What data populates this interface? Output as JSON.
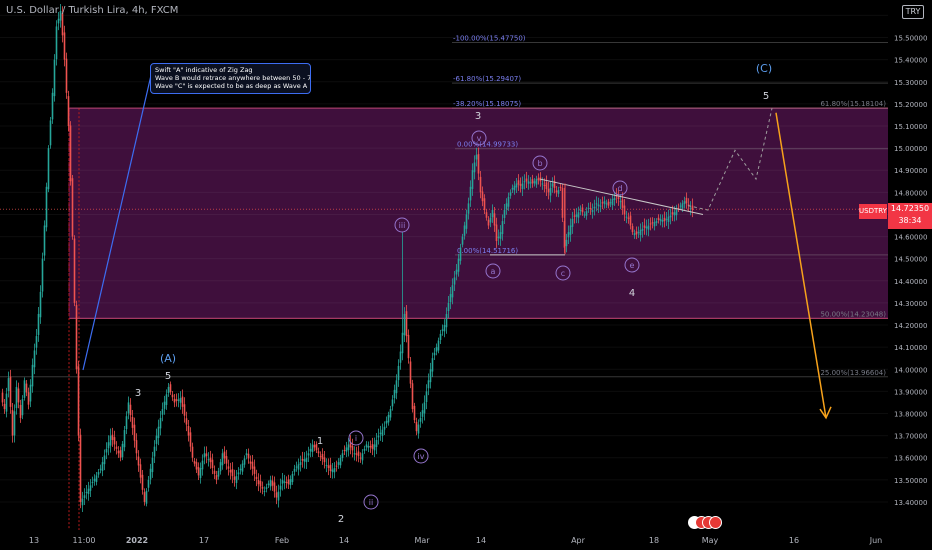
{
  "header": {
    "title": "U.S. Dollar / Turkish Lira, 4h, FXCM"
  },
  "currency_badge": "TRY",
  "note": {
    "lines": [
      "Swift \"A\" indicative of Zig Zag",
      "Wave B would retrace anywhere between 50 - 78%",
      "Wave \"C\" is expected to be as deep as Wave A"
    ]
  },
  "price_tag": {
    "symbol": "USDTRY",
    "price": "14.72350",
    "countdown": "38:34"
  },
  "colors": {
    "up": "#26a69a",
    "down": "#ef5350",
    "zone": "#4a1247",
    "zone_border": "#c2185b",
    "projection": "#f7a21b",
    "wave_label": "#9575cd",
    "fib_text": "#787b86",
    "fib_label": "#7b7ff0"
  },
  "chart_data": {
    "type": "candlestick",
    "symbol": "USDTRY",
    "timeframe": "4h",
    "ylim": [
      13.35,
      15.62
    ],
    "y_ticks": [
      "15.60000",
      "15.50000",
      "15.40000",
      "15.30000",
      "15.20000",
      "15.10000",
      "15.00000",
      "14.90000",
      "14.80000",
      "14.70000",
      "14.60000",
      "14.50000",
      "14.40000",
      "14.30000",
      "14.20000",
      "14.10000",
      "14.00000",
      "13.90000",
      "13.80000",
      "13.70000",
      "13.60000",
      "13.50000",
      "13.40000"
    ],
    "x_ticks": [
      "13",
      "11:00",
      "2022",
      "17",
      "Feb",
      "14",
      "Mar",
      "14",
      "Apr",
      "18",
      "May",
      "16",
      "Jun"
    ],
    "series_path": [
      [
        0,
        13.88
      ],
      [
        4,
        13.82
      ],
      [
        8,
        13.96
      ],
      [
        12,
        13.7
      ],
      [
        16,
        13.92
      ],
      [
        20,
        13.78
      ],
      [
        24,
        13.95
      ],
      [
        28,
        13.84
      ],
      [
        32,
        14.02
      ],
      [
        36,
        14.15
      ],
      [
        40,
        14.35
      ],
      [
        44,
        14.65
      ],
      [
        48,
        15.0
      ],
      [
        52,
        15.25
      ],
      [
        56,
        15.55
      ],
      [
        60,
        15.62
      ],
      [
        64,
        15.4
      ],
      [
        68,
        15.1
      ],
      [
        72,
        14.6
      ],
      [
        76,
        14.0
      ],
      [
        80,
        13.4
      ],
      [
        100,
        13.55
      ],
      [
        110,
        13.7
      ],
      [
        120,
        13.6
      ],
      [
        128,
        13.85
      ],
      [
        136,
        13.62
      ],
      [
        144,
        13.4
      ],
      [
        150,
        13.55
      ],
      [
        156,
        13.7
      ],
      [
        162,
        13.82
      ],
      [
        168,
        13.92
      ],
      [
        174,
        13.85
      ],
      [
        180,
        13.87
      ],
      [
        186,
        13.75
      ],
      [
        192,
        13.6
      ],
      [
        198,
        13.52
      ],
      [
        204,
        13.62
      ],
      [
        210,
        13.58
      ],
      [
        216,
        13.5
      ],
      [
        222,
        13.62
      ],
      [
        228,
        13.55
      ],
      [
        234,
        13.5
      ],
      [
        240,
        13.55
      ],
      [
        246,
        13.62
      ],
      [
        252,
        13.55
      ],
      [
        258,
        13.48
      ],
      [
        264,
        13.45
      ],
      [
        270,
        13.5
      ],
      [
        276,
        13.42
      ],
      [
        282,
        13.5
      ],
      [
        288,
        13.48
      ],
      [
        294,
        13.55
      ],
      [
        300,
        13.58
      ],
      [
        306,
        13.6
      ],
      [
        312,
        13.66
      ],
      [
        318,
        13.62
      ],
      [
        324,
        13.58
      ],
      [
        330,
        13.54
      ],
      [
        336,
        13.56
      ],
      [
        342,
        13.62
      ],
      [
        348,
        13.66
      ],
      [
        354,
        13.62
      ],
      [
        360,
        13.6
      ],
      [
        366,
        13.66
      ],
      [
        372,
        13.64
      ],
      [
        378,
        13.7
      ],
      [
        384,
        13.74
      ],
      [
        390,
        13.82
      ],
      [
        396,
        13.95
      ],
      [
        400,
        14.08
      ],
      [
        404,
        14.25
      ],
      [
        408,
        14.05
      ],
      [
        412,
        13.82
      ],
      [
        416,
        13.72
      ],
      [
        420,
        13.78
      ],
      [
        424,
        13.85
      ],
      [
        428,
        13.95
      ],
      [
        432,
        14.05
      ],
      [
        436,
        14.1
      ],
      [
        440,
        14.16
      ],
      [
        444,
        14.2
      ],
      [
        448,
        14.3
      ],
      [
        452,
        14.38
      ],
      [
        456,
        14.45
      ],
      [
        460,
        14.55
      ],
      [
        464,
        14.65
      ],
      [
        468,
        14.75
      ],
      [
        472,
        14.9
      ],
      [
        476,
        14.97
      ],
      [
        480,
        14.8
      ],
      [
        484,
        14.72
      ],
      [
        488,
        14.65
      ],
      [
        492,
        14.72
      ],
      [
        496,
        14.58
      ],
      [
        500,
        14.62
      ],
      [
        504,
        14.72
      ],
      [
        508,
        14.78
      ],
      [
        512,
        14.82
      ],
      [
        516,
        14.84
      ],
      [
        520,
        14.83
      ],
      [
        524,
        14.85
      ],
      [
        528,
        14.85
      ],
      [
        532,
        14.84
      ],
      [
        536,
        14.86
      ],
      [
        540,
        14.85
      ],
      [
        544,
        14.83
      ],
      [
        548,
        14.8
      ],
      [
        552,
        14.84
      ],
      [
        556,
        14.8
      ],
      [
        560,
        14.82
      ],
      [
        564,
        14.55
      ],
      [
        568,
        14.62
      ],
      [
        572,
        14.68
      ],
      [
        576,
        14.7
      ],
      [
        580,
        14.72
      ],
      [
        584,
        14.7
      ],
      [
        588,
        14.73
      ],
      [
        592,
        14.72
      ],
      [
        596,
        14.75
      ],
      [
        600,
        14.74
      ],
      [
        604,
        14.76
      ],
      [
        608,
        14.74
      ],
      [
        612,
        14.77
      ],
      [
        616,
        14.78
      ],
      [
        620,
        14.76
      ],
      [
        624,
        14.7
      ],
      [
        628,
        14.68
      ],
      [
        632,
        14.62
      ],
      [
        636,
        14.61
      ],
      [
        640,
        14.63
      ],
      [
        644,
        14.64
      ],
      [
        648,
        14.65
      ],
      [
        652,
        14.66
      ],
      [
        656,
        14.67
      ],
      [
        660,
        14.68
      ],
      [
        664,
        14.67
      ],
      [
        668,
        14.69
      ],
      [
        672,
        14.7
      ],
      [
        676,
        14.72
      ],
      [
        680,
        14.74
      ],
      [
        684,
        14.76
      ],
      [
        688,
        14.74
      ],
      [
        692,
        14.72
      ]
    ],
    "zone": {
      "top": 15.181,
      "bottom": 14.23
    },
    "fib_lines": [
      {
        "label": "-100.00%(15.47750)",
        "value": 15.4775
      },
      {
        "label": "-61.80%(15.29407)",
        "value": 15.29407
      },
      {
        "label": "-38.20%(15.18075)",
        "value": 15.18075
      },
      {
        "label": "0.00%(14.99733)",
        "value": 14.99733
      },
      {
        "label": "0.00%(14.51716)",
        "value": 14.51716
      },
      {
        "label": "61.80%(15.18104)",
        "value": 15.18104
      },
      {
        "label": "50.00%(14.23048)",
        "value": 14.23048
      },
      {
        "label": "25.00%(13.96604)",
        "value": 13.96604
      }
    ],
    "wave_labels": [
      {
        "text": "(A)",
        "style": "major"
      },
      {
        "text": "5",
        "style": "plain"
      },
      {
        "text": "3",
        "style": "plain"
      },
      {
        "text": "1",
        "style": "plain"
      },
      {
        "text": "2",
        "style": "plain"
      },
      {
        "text": "i",
        "style": "circle"
      },
      {
        "text": "ii",
        "style": "circle"
      },
      {
        "text": "iii",
        "style": "circle"
      },
      {
        "text": "iv",
        "style": "circle"
      },
      {
        "text": "v",
        "style": "circle"
      },
      {
        "text": "3",
        "style": "plain"
      },
      {
        "text": "a",
        "style": "circle"
      },
      {
        "text": "b",
        "style": "circle"
      },
      {
        "text": "c",
        "style": "circle"
      },
      {
        "text": "d",
        "style": "circle"
      },
      {
        "text": "e",
        "style": "circle"
      },
      {
        "text": "4",
        "style": "plain"
      },
      {
        "text": "5",
        "style": "plain"
      },
      {
        "text": "(C)",
        "style": "major"
      }
    ]
  }
}
